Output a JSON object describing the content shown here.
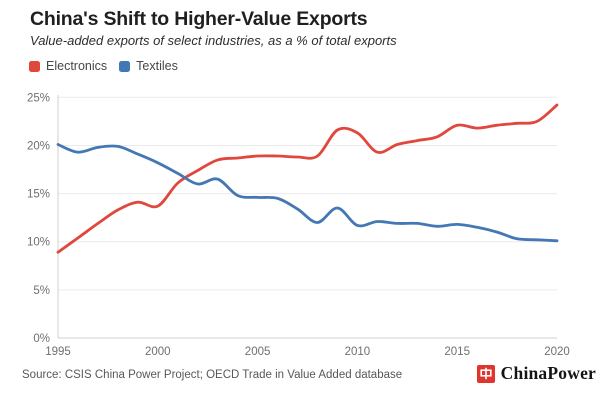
{
  "chart_data": {
    "type": "line",
    "title": "China's Shift to Higher-Value Exports",
    "subtitle": "Value-added exports of select industries, as a % of total exports",
    "x": [
      1995,
      1996,
      1997,
      1998,
      1999,
      2000,
      2001,
      2002,
      2003,
      2004,
      2005,
      2006,
      2007,
      2008,
      2009,
      2010,
      2011,
      2012,
      2013,
      2014,
      2015,
      2016,
      2017,
      2018,
      2019,
      2020
    ],
    "series": [
      {
        "name": "Electronics",
        "color": "#e0473d",
        "values": [
          8.9,
          10.4,
          11.9,
          13.3,
          14.1,
          13.7,
          16.1,
          17.4,
          18.5,
          18.7,
          18.9,
          18.9,
          18.8,
          18.9,
          21.6,
          21.3,
          19.3,
          20.1,
          20.5,
          20.9,
          22.1,
          21.8,
          22.1,
          22.3,
          22.5,
          24.2
        ]
      },
      {
        "name": "Textiles",
        "color": "#4378b5",
        "values": [
          20.1,
          19.3,
          19.8,
          19.9,
          19.1,
          18.2,
          17.1,
          16.0,
          16.5,
          14.8,
          14.6,
          14.5,
          13.4,
          12.0,
          13.5,
          11.7,
          12.1,
          11.9,
          11.9,
          11.6,
          11.8,
          11.5,
          11.0,
          10.3,
          10.2,
          10.1
        ]
      }
    ],
    "xticks": [
      1995,
      2000,
      2005,
      2010,
      2015,
      2020
    ],
    "yticks": [
      0,
      5,
      10,
      15,
      20,
      25
    ],
    "ylim": [
      0,
      25
    ],
    "y_suffix": "%",
    "grid": "horizontal",
    "legend_position": "top-left",
    "grid_color": "#ebebeb",
    "axis_color": "#d2d2d2",
    "tick_label_color": "#6f6f6f"
  },
  "footer": {
    "source": "Source: CSIS China Power Project; OECD Trade in Value Added database",
    "brand": "ChinaPower",
    "brand_logo_color": "#e0352c"
  }
}
